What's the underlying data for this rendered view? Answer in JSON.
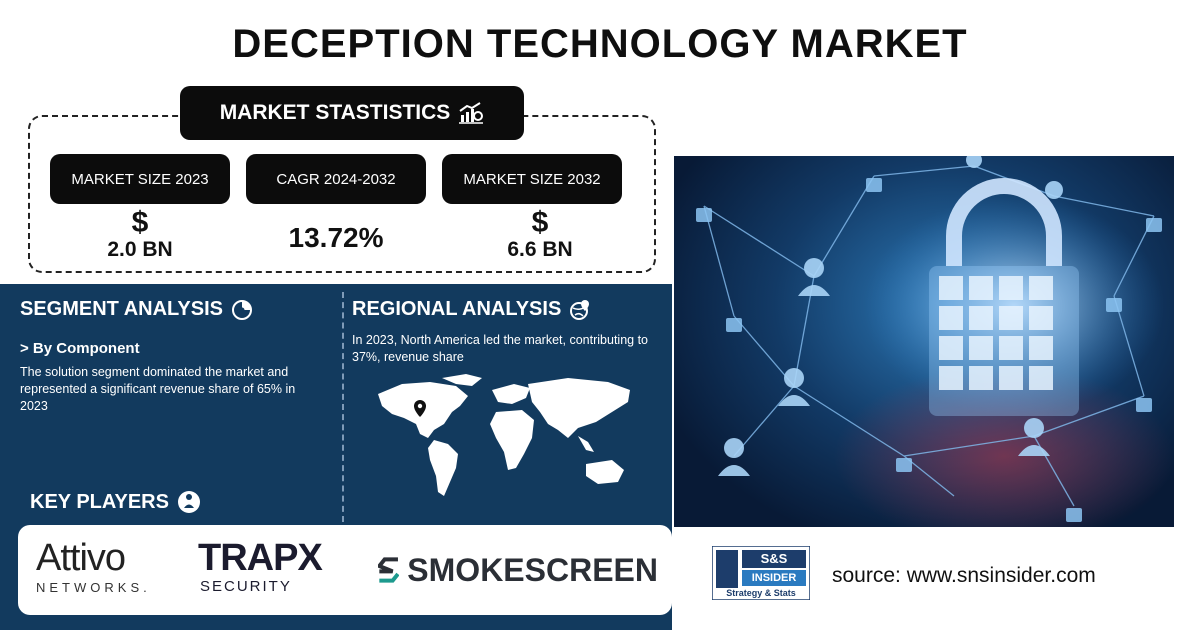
{
  "title": "DECEPTION TECHNOLOGY MARKET",
  "stats": {
    "header": "MARKET STASTISTICS",
    "items": [
      {
        "label": "MARKET SIZE 2023",
        "symbol": "$",
        "value": "2.0 BN"
      },
      {
        "label": "CAGR 2024-2032",
        "symbol": "",
        "value": "13.72%"
      },
      {
        "label": "MARKET SIZE 2032",
        "symbol": "$",
        "value": "6.6 BN"
      }
    ]
  },
  "segment": {
    "title": "SEGMENT ANALYSIS",
    "sub": "> By Component",
    "text": "The solution segment dominated the market and represented a significant revenue share of 65% in 2023"
  },
  "regional": {
    "title": "REGIONAL ANALYSIS",
    "text": "In 2023, North America led the market, contributing to 37%, revenue share"
  },
  "players": {
    "title": "KEY PLAYERS",
    "list": [
      {
        "name": "Attivo",
        "sub": "NETWORKS."
      },
      {
        "name": "TRAPX",
        "sub": "SECURITY"
      },
      {
        "name": "SMOKESCREEN",
        "sub": ""
      }
    ]
  },
  "source": {
    "logo_top": "S&S",
    "logo_mid": "INSIDER",
    "logo_bottom": "Strategy & Stats",
    "text": "source: www.snsinsider.com"
  },
  "colors": {
    "panel": "#123a5e",
    "dark": "#0c0c0c",
    "accent_orange": "#e87722",
    "accent_blue": "#1d6fb8"
  }
}
